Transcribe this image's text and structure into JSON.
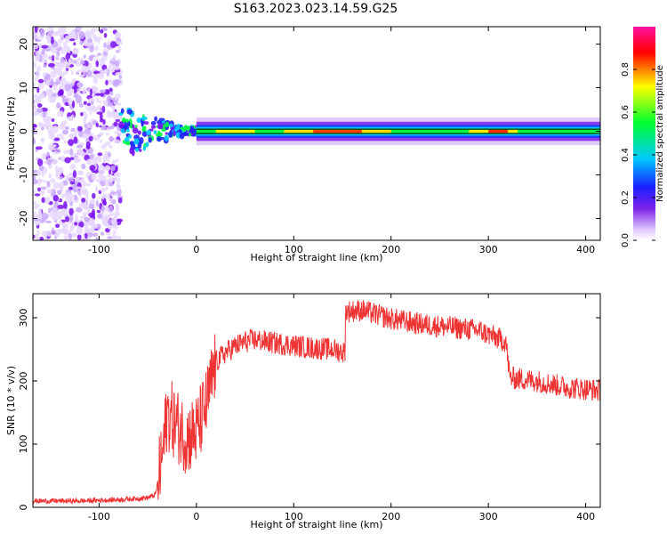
{
  "title": "S163.2023.023.14.59.G25",
  "chart_data": [
    {
      "type": "heatmap",
      "xlabel": "Height of straight line (km)",
      "ylabel": "Frequency (Hz)",
      "xlim": [
        -168,
        415
      ],
      "ylim": [
        -25,
        24
      ],
      "xticks": [
        -100,
        0,
        100,
        200,
        300,
        400
      ],
      "yticks": [
        -20,
        -10,
        0,
        10,
        20
      ],
      "colorbar": {
        "label": "Normalized spectral amplitude",
        "range": [
          0.0,
          1.0
        ],
        "ticks": [
          0.0,
          0.2,
          0.4,
          0.6,
          0.8
        ],
        "colormap": [
          "#ffffff",
          "#d8b8ff",
          "#8a2be2",
          "#2020ff",
          "#00d0ff",
          "#00ff40",
          "#ffff00",
          "#ff0000",
          "#ff00a0"
        ]
      },
      "regions": [
        {
          "x_range": [
            -168,
            -78
          ],
          "description_values": {
            "freq_spread_hz": [
              -25,
              24
            ],
            "amplitude_level": 0.05
          }
        },
        {
          "x_range": [
            -78,
            0
          ],
          "description_values": {
            "freq_spread_hz": [
              -5,
              6
            ],
            "amplitude_level": 0.5
          }
        },
        {
          "x_range": [
            0,
            415
          ],
          "description_values": {
            "freq_spread_hz": [
              -2,
              2
            ],
            "amplitude_level": 0.9
          }
        }
      ],
      "ridge_line_y_hz": [
        0.5,
        -0.5
      ]
    },
    {
      "type": "line",
      "xlabel": "Height of straight line (km)",
      "ylabel": "SNR (10 * v/v)",
      "xlim": [
        -168,
        415
      ],
      "ylim": [
        0,
        338
      ],
      "xticks": [
        -100,
        0,
        100,
        200,
        300,
        400
      ],
      "yticks": [
        0,
        100,
        200,
        300
      ],
      "color": "#ee3333",
      "series": [
        {
          "x": [
            -168,
            -120,
            -80,
            -50,
            -42,
            -35,
            -30,
            -20,
            -10,
            0,
            10,
            20,
            30,
            40,
            50,
            60,
            80,
            100,
            120,
            140,
            153,
            155,
            170,
            200,
            230,
            260,
            290,
            318,
            322,
            350,
            380,
            415
          ],
          "y": [
            10,
            10,
            12,
            15,
            20,
            80,
            150,
            130,
            110,
            120,
            160,
            230,
            245,
            255,
            262,
            265,
            260,
            256,
            252,
            250,
            245,
            310,
            312,
            298,
            290,
            285,
            280,
            262,
            205,
            200,
            190,
            185
          ]
        }
      ]
    }
  ]
}
